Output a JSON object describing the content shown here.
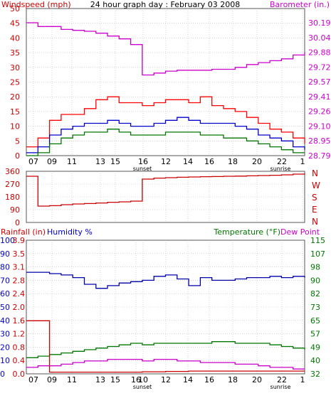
{
  "chart_data": [
    {
      "type": "line",
      "title": "24 hour graph day : February 03 2008",
      "left_axis_label": "Windspeed (mph)",
      "right_axis_label": "Barometer (in.)",
      "left_ticks": [
        "50",
        "45",
        "40",
        "35",
        "30",
        "25",
        "20",
        "15",
        "10",
        "5",
        "0"
      ],
      "right_ticks": [
        "30.19",
        "30.04",
        "29.88",
        "29.72",
        "29.57",
        "29.41",
        "29.26",
        "29.10",
        "28.95",
        "28.79"
      ],
      "x_ticks": [
        "07",
        "09",
        "11",
        "13",
        "15",
        "16",
        "12",
        "14",
        "16",
        "18",
        "20",
        "22",
        "1"
      ],
      "x_markers": [
        "sunset",
        "sunrise"
      ],
      "ylim_left": [
        0,
        50
      ],
      "ylim_right": [
        28.79,
        30.19
      ],
      "hours": [
        6,
        7,
        8,
        9,
        10,
        11,
        12,
        13,
        14,
        15,
        16,
        17,
        18,
        19,
        20,
        21,
        22,
        23,
        24,
        25,
        26,
        27,
        28,
        29,
        30
      ],
      "series": [
        {
          "axis": "right",
          "color": "#cc00cc",
          "values": [
            30.19,
            30.15,
            30.15,
            30.12,
            30.11,
            30.1,
            30.08,
            30.05,
            30.02,
            29.96,
            29.64,
            29.66,
            29.68,
            29.69,
            29.69,
            29.69,
            29.7,
            29.7,
            29.72,
            29.75,
            29.77,
            29.79,
            29.81,
            29.85,
            29.88
          ]
        },
        {
          "axis": "left",
          "color": "#ff0000",
          "values": [
            3,
            6,
            12,
            14,
            14,
            16,
            19,
            20,
            18,
            18,
            17,
            18,
            19,
            19,
            18,
            20,
            17,
            16,
            15,
            13,
            11,
            9,
            8,
            6,
            4
          ]
        },
        {
          "axis": "left",
          "color": "#0000cc",
          "values": [
            1,
            3,
            7,
            9,
            10,
            11,
            11,
            12,
            11,
            10,
            10,
            11,
            12,
            13,
            12,
            11,
            11,
            11,
            10,
            9,
            7,
            6,
            5,
            3,
            2
          ]
        },
        {
          "axis": "left",
          "color": "#007700",
          "values": [
            0,
            1,
            4,
            6,
            7,
            8,
            8,
            9,
            8,
            7,
            7,
            7,
            8,
            8,
            8,
            7,
            7,
            6,
            6,
            5,
            4,
            3,
            2,
            1,
            1
          ]
        }
      ]
    },
    {
      "type": "line",
      "right_axis_labels": [
        "N",
        "W",
        "S",
        "E",
        "N"
      ],
      "left_ticks": [
        "360",
        "270",
        "180",
        "90",
        "0"
      ],
      "ylim": [
        0,
        360
      ],
      "hours": [
        6,
        7,
        8,
        9,
        10,
        11,
        12,
        13,
        14,
        15,
        16,
        17,
        18,
        19,
        20,
        21,
        22,
        23,
        24,
        25,
        26,
        27,
        28,
        29,
        30
      ],
      "series": [
        {
          "color": "#cc0000",
          "values": [
            325,
            115,
            118,
            125,
            130,
            133,
            137,
            142,
            145,
            150,
            305,
            312,
            315,
            318,
            320,
            322,
            323,
            325,
            326,
            328,
            330,
            332,
            335,
            340,
            345
          ]
        }
      ]
    },
    {
      "type": "line",
      "left_axis_label_1": "Rainfall (in)",
      "left_axis_label_2": "Humidity %",
      "right_axis_label_1": "Temperature (°F)",
      "right_axis_label_2": "Dew Point",
      "humidity_ticks": [
        "100",
        "90",
        "80",
        "70",
        "60",
        "50",
        "40",
        "30",
        "20",
        "10",
        "0"
      ],
      "rain_ticks": [
        "3.9",
        "3.5",
        "3.1",
        "2.8",
        "2.4",
        "2.0",
        "1.6",
        "1.2",
        "0.8",
        "0.4",
        "0.0"
      ],
      "temp_ticks": [
        "115",
        "107",
        "98",
        "90",
        "82",
        "73",
        "65",
        "57",
        "49",
        "40",
        "32"
      ],
      "x_ticks": [
        "07",
        "09",
        "11",
        "13",
        "15",
        "16",
        "10",
        "12",
        "14",
        "16",
        "18",
        "20",
        "22",
        "1"
      ],
      "x_markers": [
        "sunset",
        "sunrise"
      ],
      "ylim_humidity": [
        0,
        100
      ],
      "ylim_temp": [
        32,
        115
      ],
      "ylim_rain": [
        0,
        3.9
      ],
      "hours": [
        6,
        7,
        8,
        9,
        10,
        11,
        12,
        13,
        14,
        15,
        16,
        17,
        18,
        19,
        20,
        21,
        22,
        23,
        24,
        25,
        26,
        27,
        28,
        29,
        30
      ],
      "series": [
        {
          "name": "Humidity %",
          "axis": "humidity",
          "color": "#0000aa",
          "values": [
            76,
            76,
            75,
            74,
            72,
            67,
            64,
            66,
            68,
            69,
            70,
            73,
            74,
            71,
            66,
            72,
            70,
            70,
            71,
            72,
            72,
            73,
            72,
            73,
            72
          ]
        },
        {
          "name": "Temperature (°F)",
          "axis": "temp",
          "color": "#007700",
          "values": [
            42,
            43,
            44,
            45,
            46,
            47,
            48,
            49,
            50,
            51,
            50,
            51,
            51,
            51,
            51,
            51,
            52,
            52,
            51,
            51,
            51,
            50,
            49,
            48,
            47
          ]
        },
        {
          "name": "Dew Point",
          "axis": "temp",
          "color": "#cc00cc",
          "values": [
            36,
            37,
            37,
            38,
            39,
            40,
            40,
            41,
            41,
            41,
            40,
            41,
            41,
            40,
            40,
            39,
            39,
            39,
            38,
            38,
            37,
            36,
            36,
            35,
            35
          ]
        },
        {
          "name": "Rainfall (in)",
          "axis": "rain",
          "color": "#cc0000",
          "values": [
            1.55,
            1.55,
            0.05,
            0.05,
            0.05,
            0.05,
            0.05,
            0.05,
            0.05,
            0.05,
            0.06,
            0.06,
            0.07,
            0.07,
            0.08,
            0.08,
            0.08,
            0.08,
            0.08,
            0.08,
            0.08,
            0.08,
            0.08,
            0.08,
            0.08
          ]
        }
      ]
    }
  ]
}
